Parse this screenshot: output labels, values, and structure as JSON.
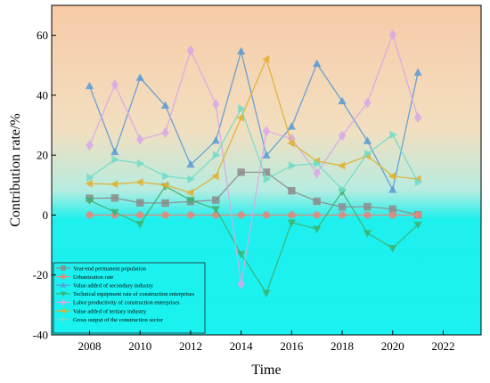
{
  "chart_data": {
    "type": "line",
    "title": "",
    "xlabel": "Time",
    "ylabel": "Contribution rate/%",
    "xlim": [
      2006.5,
      2023.5
    ],
    "ylim": [
      -40,
      70
    ],
    "xticks": [
      2008,
      2010,
      2012,
      2014,
      2016,
      2018,
      2020,
      2022
    ],
    "yticks": [
      -40,
      -20,
      0,
      20,
      40,
      60
    ],
    "grid": false,
    "legend_position": "bottom-left",
    "background": "vertical gradient: peach at top, fading to cyan below 0",
    "x": [
      2008,
      2009,
      2010,
      2011,
      2012,
      2013,
      2014,
      2015,
      2016,
      2017,
      2018,
      2019,
      2020,
      2021
    ],
    "series": [
      {
        "name": "Year-end permanent population",
        "color": "#8c8c8c",
        "marker": "square",
        "values": [
          5.6,
          5.7,
          4.1,
          4.0,
          4.5,
          5.0,
          14.3,
          14.3,
          8.1,
          4.6,
          2.7,
          2.8,
          2.0,
          0.1
        ]
      },
      {
        "name": "Urbanization rate",
        "color": "#e8857a",
        "marker": "circle",
        "values": [
          0,
          0,
          0,
          0,
          0,
          0,
          0,
          0,
          0,
          0,
          0,
          0,
          0,
          0
        ]
      },
      {
        "name": "Value added of secondary industry",
        "color": "#5b9bd5",
        "marker": "triangle-up",
        "values": [
          43.0,
          21.0,
          45.8,
          36.5,
          16.8,
          24.8,
          54.6,
          19.9,
          29.5,
          50.5,
          38.0,
          24.7,
          8.4,
          47.5
        ]
      },
      {
        "name": "Technical equipment rate of construction enterprises",
        "color": "#3cb371",
        "marker": "triangle-down",
        "values": [
          4.9,
          1.0,
          -3.0,
          9.6,
          5.0,
          2.0,
          -13.0,
          -26.0,
          -2.5,
          -4.6,
          7.8,
          -6.0,
          -11.0,
          -3.2
        ]
      },
      {
        "name": "Labor productivity of construction enterprises",
        "color": "#d8a8e8",
        "marker": "diamond",
        "values": [
          23.3,
          43.5,
          25.2,
          27.5,
          55.0,
          37.0,
          -23.0,
          28.0,
          25.5,
          14.0,
          26.5,
          37.5,
          60.3,
          32.5
        ]
      },
      {
        "name": "Value added of tertiary industry",
        "color": "#e0b030",
        "marker": "triangle-left",
        "values": [
          10.5,
          10.3,
          11.0,
          10.0,
          7.5,
          13.0,
          32.5,
          52.0,
          24.0,
          18.0,
          16.5,
          19.8,
          13.0,
          12.0
        ]
      },
      {
        "name": "Gross output of the construction sector",
        "color": "#6fdcc8",
        "marker": "triangle-right",
        "values": [
          12.5,
          18.5,
          17.2,
          13.0,
          12.0,
          20.0,
          35.5,
          12.0,
          16.5,
          17.2,
          8.5,
          20.5,
          26.8,
          11.0
        ]
      }
    ]
  }
}
